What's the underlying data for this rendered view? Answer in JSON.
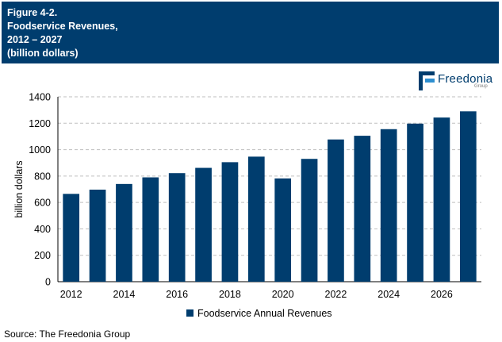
{
  "header": {
    "line1": "Figure 4-2.",
    "line2": "Foodservice Revenues,",
    "line3": "2012 – 2027",
    "line4": "(billion dollars)"
  },
  "logo": {
    "word": "Freedonia",
    "sub": "Group"
  },
  "source": "Source: The Freedonia Group",
  "colors": {
    "bar": "#003D6E",
    "header_bg": "#003D6E",
    "grid": "#BFBFBF",
    "accent": "#2E8FD0"
  },
  "chart_data": {
    "type": "bar",
    "title": "Foodservice Revenues, 2012 – 2027",
    "ylabel": "billion dollars",
    "xlabel": "",
    "ylim": [
      0,
      1400
    ],
    "yticks": [
      0,
      200,
      400,
      600,
      800,
      1000,
      1200,
      1400
    ],
    "grid": true,
    "legend_position": "bottom",
    "categories": [
      "2012",
      "2013",
      "2014",
      "2015",
      "2016",
      "2017",
      "2018",
      "2019",
      "2020",
      "2021",
      "2022",
      "2023",
      "2024",
      "2025",
      "2026",
      "2027"
    ],
    "xtick_labels": [
      "2012",
      "",
      "2014",
      "",
      "2016",
      "",
      "2018",
      "",
      "2020",
      "",
      "2022",
      "",
      "2024",
      "",
      "2026",
      ""
    ],
    "series": [
      {
        "name": "Foodservice Annual Revenues",
        "values": [
          665,
          697,
          740,
          790,
          822,
          862,
          905,
          947,
          782,
          930,
          1077,
          1105,
          1155,
          1197,
          1243,
          1290
        ]
      }
    ]
  }
}
